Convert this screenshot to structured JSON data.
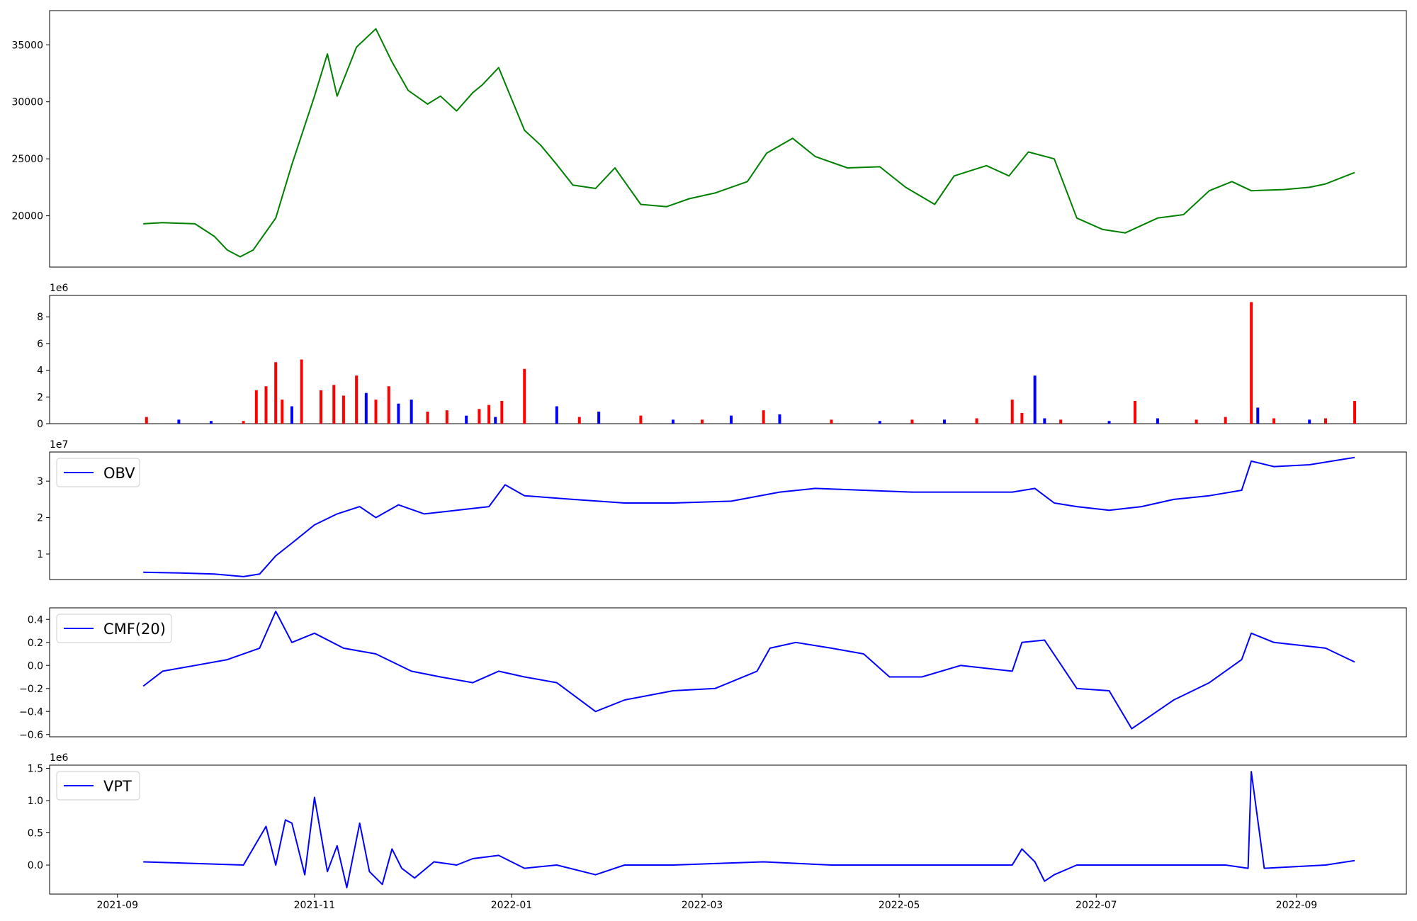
{
  "chart_data": [
    {
      "type": "line",
      "panel": "price",
      "series": [
        {
          "color": "#008000",
          "x": [
            "2021-09-09",
            "2021-09-15",
            "2021-09-25",
            "2021-10-01",
            "2021-10-05",
            "2021-10-09",
            "2021-10-13",
            "2021-10-20",
            "2021-10-25",
            "2021-11-01",
            "2021-11-05",
            "2021-11-08",
            "2021-11-14",
            "2021-11-20",
            "2021-11-25",
            "2021-11-30",
            "2021-12-06",
            "2021-12-10",
            "2021-12-15",
            "2021-12-20",
            "2021-12-23",
            "2021-12-28",
            "2022-01-05",
            "2022-01-10",
            "2022-01-15",
            "2022-01-20",
            "2022-01-27",
            "2022-02-02",
            "2022-02-10",
            "2022-02-18",
            "2022-02-25",
            "2022-03-05",
            "2022-03-15",
            "2022-03-21",
            "2022-03-29",
            "2022-04-05",
            "2022-04-15",
            "2022-04-25",
            "2022-05-03",
            "2022-05-12",
            "2022-05-18",
            "2022-05-28",
            "2022-06-04",
            "2022-06-10",
            "2022-06-18",
            "2022-06-25",
            "2022-07-03",
            "2022-07-10",
            "2022-07-20",
            "2022-07-28",
            "2022-08-05",
            "2022-08-12",
            "2022-08-18",
            "2022-08-28",
            "2022-09-05",
            "2022-09-10",
            "2022-09-19"
          ],
          "values": [
            19300,
            19400,
            19300,
            18200,
            17000,
            16400,
            17000,
            19800,
            24500,
            30500,
            34200,
            30500,
            34800,
            36400,
            33500,
            31000,
            29800,
            30500,
            29200,
            30800,
            31500,
            33000,
            27500,
            26200,
            24500,
            22700,
            22400,
            24200,
            21000,
            20800,
            21500,
            22000,
            23000,
            25500,
            26800,
            25200,
            24200,
            24300,
            22500,
            21000,
            23500,
            24400,
            23500,
            25600,
            25000,
            19800,
            18800,
            18500,
            19800,
            20100,
            22200,
            23000,
            22200,
            22300,
            22500,
            22800,
            23800
          ]
        }
      ],
      "yticks": [
        "20000",
        "25000",
        "30000",
        "35000"
      ],
      "ylim": [
        15500,
        38000
      ]
    },
    {
      "type": "bar",
      "panel": "volume",
      "offset_label": "1e6",
      "yticks": [
        "0",
        "2",
        "4",
        "6",
        "8"
      ],
      "ylim": [
        0,
        9.6
      ],
      "x": [
        "2021-09-10",
        "2021-09-20",
        "2021-09-30",
        "2021-10-10",
        "2021-10-14",
        "2021-10-17",
        "2021-10-20",
        "2021-10-22",
        "2021-10-25",
        "2021-10-28",
        "2021-11-03",
        "2021-11-07",
        "2021-11-10",
        "2021-11-14",
        "2021-11-17",
        "2021-11-20",
        "2021-11-24",
        "2021-11-27",
        "2021-12-01",
        "2021-12-06",
        "2021-12-12",
        "2021-12-18",
        "2021-12-22",
        "2021-12-25",
        "2021-12-27",
        "2021-12-29",
        "2022-01-05",
        "2022-01-15",
        "2022-01-22",
        "2022-01-28",
        "2022-02-10",
        "2022-02-20",
        "2022-03-01",
        "2022-03-10",
        "2022-03-20",
        "2022-03-25",
        "2022-04-10",
        "2022-04-25",
        "2022-05-05",
        "2022-05-15",
        "2022-05-25",
        "2022-06-05",
        "2022-06-08",
        "2022-06-12",
        "2022-06-15",
        "2022-06-20",
        "2022-07-05",
        "2022-07-13",
        "2022-07-20",
        "2022-08-01",
        "2022-08-10",
        "2022-08-18",
        "2022-08-20",
        "2022-08-25",
        "2022-09-05",
        "2022-09-10",
        "2022-09-19"
      ],
      "values": [
        0.5,
        0.3,
        0.2,
        0.2,
        2.5,
        2.8,
        4.6,
        1.8,
        1.3,
        4.8,
        2.5,
        2.9,
        2.1,
        3.6,
        2.3,
        1.8,
        2.8,
        1.5,
        1.8,
        0.9,
        1.0,
        0.6,
        1.1,
        1.4,
        0.5,
        1.7,
        4.1,
        1.3,
        0.5,
        0.9,
        0.6,
        0.3,
        0.3,
        0.6,
        1.0,
        0.7,
        0.3,
        0.2,
        0.3,
        0.3,
        0.4,
        1.8,
        0.8,
        3.6,
        0.4,
        0.3,
        0.2,
        1.7,
        0.4,
        0.3,
        0.5,
        9.1,
        1.2,
        0.4,
        0.3,
        0.4,
        1.7
      ],
      "colors": [
        "#ff0000",
        "#0000ff",
        "#0000ff",
        "#ff0000",
        "#ff0000",
        "#ff0000",
        "#ff0000",
        "#ff0000",
        "#0000ff",
        "#ff0000",
        "#ff0000",
        "#ff0000",
        "#ff0000",
        "#ff0000",
        "#0000ff",
        "#ff0000",
        "#ff0000",
        "#0000ff",
        "#0000ff",
        "#ff0000",
        "#ff0000",
        "#0000ff",
        "#ff0000",
        "#ff0000",
        "#0000ff",
        "#ff0000",
        "#ff0000",
        "#0000ff",
        "#ff0000",
        "#0000ff",
        "#ff0000",
        "#0000ff",
        "#ff0000",
        "#0000ff",
        "#ff0000",
        "#0000ff",
        "#ff0000",
        "#0000ff",
        "#ff0000",
        "#0000ff",
        "#ff0000",
        "#ff0000",
        "#ff0000",
        "#0000ff",
        "#0000ff",
        "#ff0000",
        "#0000ff",
        "#ff0000",
        "#0000ff",
        "#ff0000",
        "#ff0000",
        "#ff0000",
        "#0000ff",
        "#ff0000",
        "#0000ff",
        "#ff0000",
        "#ff0000"
      ]
    },
    {
      "type": "line",
      "panel": "obv",
      "offset_label": "1e7",
      "legend": "OBV",
      "legend_position": "upper-left",
      "yticks": [
        "1",
        "2",
        "3"
      ],
      "ylim": [
        0.3,
        3.8
      ],
      "series": [
        {
          "name": "OBV",
          "color": "#0000ff",
          "x": [
            "2021-09-09",
            "2021-09-20",
            "2021-10-01",
            "2021-10-10",
            "2021-10-15",
            "2021-10-20",
            "2021-10-25",
            "2021-11-01",
            "2021-11-08",
            "2021-11-15",
            "2021-11-20",
            "2021-11-27",
            "2021-12-05",
            "2021-12-15",
            "2021-12-25",
            "2021-12-30",
            "2022-01-05",
            "2022-01-20",
            "2022-02-05",
            "2022-02-20",
            "2022-03-10",
            "2022-03-25",
            "2022-04-05",
            "2022-04-20",
            "2022-05-05",
            "2022-05-20",
            "2022-06-05",
            "2022-06-12",
            "2022-06-18",
            "2022-06-25",
            "2022-07-05",
            "2022-07-15",
            "2022-07-25",
            "2022-08-05",
            "2022-08-15",
            "2022-08-18",
            "2022-08-25",
            "2022-09-05",
            "2022-09-19"
          ],
          "values": [
            0.5,
            0.48,
            0.45,
            0.38,
            0.45,
            0.95,
            1.3,
            1.8,
            2.1,
            2.3,
            2.0,
            2.35,
            2.1,
            2.2,
            2.3,
            2.9,
            2.6,
            2.5,
            2.4,
            2.4,
            2.45,
            2.7,
            2.8,
            2.75,
            2.7,
            2.7,
            2.7,
            2.8,
            2.4,
            2.3,
            2.2,
            2.3,
            2.5,
            2.6,
            2.75,
            3.55,
            3.4,
            3.45,
            3.65
          ]
        }
      ]
    },
    {
      "type": "line",
      "panel": "cmf",
      "legend": "CMF(20)",
      "legend_position": "upper-left",
      "yticks": [
        "−0.6",
        "−0.4",
        "−0.2",
        "0.0",
        "0.2",
        "0.4"
      ],
      "ylim": [
        -0.62,
        0.5
      ],
      "series": [
        {
          "name": "CMF(20)",
          "color": "#0000ff",
          "x": [
            "2021-09-09",
            "2021-09-15",
            "2021-09-25",
            "2021-10-05",
            "2021-10-15",
            "2021-10-20",
            "2021-10-25",
            "2021-11-01",
            "2021-11-10",
            "2021-11-20",
            "2021-12-01",
            "2021-12-10",
            "2021-12-20",
            "2021-12-28",
            "2022-01-05",
            "2022-01-15",
            "2022-01-27",
            "2022-02-05",
            "2022-02-20",
            "2022-03-05",
            "2022-03-18",
            "2022-03-22",
            "2022-03-30",
            "2022-04-10",
            "2022-04-20",
            "2022-04-28",
            "2022-05-08",
            "2022-05-20",
            "2022-06-05",
            "2022-06-08",
            "2022-06-15",
            "2022-06-25",
            "2022-07-05",
            "2022-07-12",
            "2022-07-25",
            "2022-08-05",
            "2022-08-15",
            "2022-08-18",
            "2022-08-25",
            "2022-09-10",
            "2022-09-19"
          ],
          "values": [
            -0.18,
            -0.05,
            0.0,
            0.05,
            0.15,
            0.47,
            0.2,
            0.28,
            0.15,
            0.1,
            -0.05,
            -0.1,
            -0.15,
            -0.05,
            -0.1,
            -0.15,
            -0.4,
            -0.3,
            -0.22,
            -0.2,
            -0.05,
            0.15,
            0.2,
            0.15,
            0.1,
            -0.1,
            -0.1,
            0.0,
            -0.05,
            0.2,
            0.22,
            -0.2,
            -0.22,
            -0.55,
            -0.3,
            -0.15,
            0.05,
            0.28,
            0.2,
            0.15,
            0.03
          ]
        }
      ]
    },
    {
      "type": "line",
      "panel": "vpt",
      "offset_label": "1e6",
      "legend": "VPT",
      "legend_position": "upper-left",
      "yticks": [
        "0.0",
        "0.5",
        "1.0",
        "1.5"
      ],
      "ylim": [
        -0.45,
        1.55
      ],
      "xticks": [
        {
          "date": "2021-09-01",
          "label": "2021-09"
        },
        {
          "date": "2021-11-01",
          "label": "2021-11"
        },
        {
          "date": "2022-01-01",
          "label": "2022-01"
        },
        {
          "date": "2022-03-01",
          "label": "2022-03"
        },
        {
          "date": "2022-05-01",
          "label": "2022-05"
        },
        {
          "date": "2022-07-01",
          "label": "2022-07"
        },
        {
          "date": "2022-09-01",
          "label": "2022-09"
        }
      ],
      "series": [
        {
          "name": "VPT",
          "color": "#0000ff",
          "x": [
            "2021-09-09",
            "2021-10-10",
            "2021-10-17",
            "2021-10-20",
            "2021-10-23",
            "2021-10-25",
            "2021-10-29",
            "2021-11-01",
            "2021-11-05",
            "2021-11-08",
            "2021-11-11",
            "2021-11-15",
            "2021-11-18",
            "2021-11-22",
            "2021-11-25",
            "2021-11-28",
            "2021-12-02",
            "2021-12-08",
            "2021-12-15",
            "2021-12-20",
            "2021-12-28",
            "2022-01-05",
            "2022-01-15",
            "2022-01-27",
            "2022-02-05",
            "2022-02-20",
            "2022-03-20",
            "2022-04-10",
            "2022-05-10",
            "2022-06-05",
            "2022-06-08",
            "2022-06-12",
            "2022-06-15",
            "2022-06-18",
            "2022-06-25",
            "2022-07-10",
            "2022-08-10",
            "2022-08-17",
            "2022-08-18",
            "2022-08-22",
            "2022-09-10",
            "2022-09-19"
          ],
          "values": [
            0.05,
            0.0,
            0.6,
            0.0,
            0.7,
            0.65,
            -0.15,
            1.05,
            -0.1,
            0.3,
            -0.35,
            0.65,
            -0.1,
            -0.3,
            0.25,
            -0.05,
            -0.2,
            0.05,
            0.0,
            0.1,
            0.15,
            -0.05,
            0.0,
            -0.15,
            0.0,
            0.0,
            0.05,
            0.0,
            0.0,
            0.0,
            0.25,
            0.05,
            -0.25,
            -0.15,
            0.0,
            0.0,
            0.0,
            -0.05,
            1.45,
            -0.05,
            0.0,
            0.07
          ]
        }
      ]
    }
  ]
}
